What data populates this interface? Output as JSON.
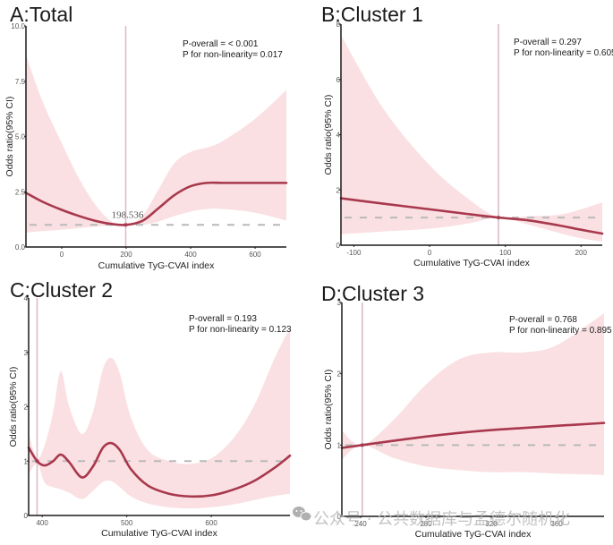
{
  "colors": {
    "curve": "#a8384d",
    "ci_band": "#f9dadd",
    "reference_line": "#b9b9b9",
    "knot_line": "#dcbcca",
    "axis": "#1a1a1a"
  },
  "watermark": {
    "icon": "wechat-icon",
    "text": "公众号 · 公共数据库与孟德尔随机化"
  },
  "chart_data": [
    {
      "id": "A",
      "type": "line",
      "title": "A:Total",
      "xlabel": "Cumulative TyG-CVAI index",
      "ylabel": "Odds ratio(95% CI)",
      "xlim": [
        -111,
        697
      ],
      "ylim": [
        0,
        10
      ],
      "xticks": [
        0,
        200,
        400,
        600
      ],
      "xtick_labels": [
        "0",
        "200",
        "400",
        "600"
      ],
      "yticks": [
        0,
        2.5,
        5,
        7.5,
        10
      ],
      "ytick_labels": [
        "0.0",
        "2.5",
        "5.0",
        "7.5",
        "10.0"
      ],
      "reference_y": 1,
      "knot_x": 198.536,
      "knot_label": "198.536",
      "stats": [
        "P-overall = < 0.001",
        "P for non-linearity= 0.017"
      ],
      "grid": false,
      "legend": "none",
      "series": [
        {
          "name": "OR",
          "x": [
            -111,
            -60,
            0,
            50,
            100,
            150,
            198.5,
            250,
            300,
            350,
            400,
            450,
            500,
            600,
            697
          ],
          "y": [
            2.45,
            2.05,
            1.68,
            1.42,
            1.2,
            1.05,
            1.0,
            1.18,
            1.75,
            2.35,
            2.75,
            2.9,
            2.9,
            2.9,
            2.9
          ]
        },
        {
          "name": "CI upper",
          "x": [
            -111,
            -60,
            0,
            50,
            100,
            150,
            198.5,
            250,
            300,
            350,
            400,
            450,
            500,
            600,
            697
          ],
          "y": [
            8.7,
            6.6,
            4.7,
            3.2,
            2.0,
            1.2,
            1.0,
            1.4,
            2.6,
            3.8,
            4.3,
            4.5,
            4.8,
            5.8,
            7.1
          ]
        },
        {
          "name": "CI lower",
          "x": [
            -111,
            -60,
            0,
            50,
            100,
            150,
            198.5,
            250,
            300,
            350,
            400,
            450,
            500,
            600,
            697
          ],
          "y": [
            0.65,
            0.72,
            0.78,
            0.85,
            0.92,
            0.97,
            1.0,
            1.0,
            1.15,
            1.4,
            1.6,
            1.72,
            1.72,
            1.55,
            1.2
          ]
        }
      ]
    },
    {
      "id": "B",
      "type": "line",
      "title": "B:Cluster 1",
      "xlabel": "Cumulative TyG-CVAI index",
      "ylabel": "Odds ratio(95% CI)",
      "xlim": [
        -117,
        228
      ],
      "ylim": [
        0,
        8
      ],
      "xticks": [
        -100,
        0,
        100,
        200
      ],
      "xtick_labels": [
        "-100",
        "0",
        "100",
        "200"
      ],
      "yticks": [
        0,
        2,
        4,
        6,
        8
      ],
      "ytick_labels": [
        "0",
        "2",
        "4",
        "6",
        "8"
      ],
      "reference_y": 1,
      "knot_x": 91,
      "stats": [
        "P-overall = 0.297",
        "P for non-linearity = 0.605"
      ],
      "grid": false,
      "legend": "none",
      "series": [
        {
          "name": "OR",
          "x": [
            -117,
            -60,
            0,
            50,
            91,
            130,
            170,
            200,
            228
          ],
          "y": [
            1.7,
            1.5,
            1.3,
            1.13,
            1.0,
            0.9,
            0.72,
            0.56,
            0.42
          ]
        },
        {
          "name": "CI upper",
          "x": [
            -117,
            -60,
            0,
            50,
            91,
            130,
            170,
            200,
            228
          ],
          "y": [
            7.6,
            4.9,
            2.9,
            1.7,
            1.0,
            1.05,
            1.1,
            1.3,
            1.55
          ]
        },
        {
          "name": "CI lower",
          "x": [
            -117,
            -60,
            0,
            50,
            91,
            130,
            170,
            200,
            228
          ],
          "y": [
            0.4,
            0.5,
            0.6,
            0.78,
            1.0,
            0.75,
            0.45,
            0.25,
            0.13
          ]
        }
      ]
    },
    {
      "id": "C",
      "type": "line",
      "title": "C:Cluster 2",
      "xlabel": "Cumulative TyG-CVAI index",
      "ylabel": "Odds ratio(95% CI)",
      "xlim": [
        384,
        693
      ],
      "ylim": [
        0,
        4
      ],
      "xticks": [
        400,
        500,
        600
      ],
      "xtick_labels": [
        "400",
        "500",
        "600"
      ],
      "yticks": [
        0,
        1,
        2,
        3,
        4
      ],
      "ytick_labels": [
        "0",
        "1",
        "2",
        "3",
        "4"
      ],
      "reference_y": 1,
      "knot_x": 394,
      "stats": [
        "P-overall = 0.193",
        "P for non-linearity = 0.123"
      ],
      "grid": false,
      "legend": "none",
      "series": [
        {
          "name": "OR",
          "x": [
            384,
            394,
            403,
            413,
            422,
            432,
            447,
            460,
            472,
            482,
            492,
            505,
            525,
            550,
            575,
            600,
            625,
            650,
            675,
            693
          ],
          "y": [
            1.25,
            1.0,
            0.92,
            1.0,
            1.12,
            0.98,
            0.7,
            0.9,
            1.25,
            1.33,
            1.2,
            0.85,
            0.55,
            0.4,
            0.35,
            0.37,
            0.47,
            0.63,
            0.88,
            1.1
          ]
        },
        {
          "name": "CI upper",
          "x": [
            384,
            394,
            403,
            413,
            422,
            432,
            447,
            460,
            472,
            482,
            492,
            505,
            525,
            550,
            575,
            600,
            625,
            650,
            675,
            693
          ],
          "y": [
            1.5,
            1.05,
            1.3,
            1.9,
            2.65,
            2.0,
            1.5,
            1.9,
            2.7,
            2.9,
            2.6,
            1.8,
            1.2,
            1.0,
            0.95,
            1.05,
            1.4,
            2.0,
            2.9,
            3.45
          ]
        },
        {
          "name": "CI lower",
          "x": [
            384,
            394,
            403,
            413,
            422,
            432,
            447,
            460,
            472,
            482,
            492,
            505,
            525,
            550,
            575,
            600,
            625,
            650,
            675,
            693
          ],
          "y": [
            0.75,
            0.95,
            0.6,
            0.52,
            0.48,
            0.42,
            0.3,
            0.45,
            0.62,
            0.63,
            0.52,
            0.35,
            0.22,
            0.15,
            0.13,
            0.15,
            0.2,
            0.28,
            0.36,
            0.4
          ]
        }
      ]
    },
    {
      "id": "D",
      "type": "line",
      "title": "D:Cluster 3",
      "xlabel": "Cumulative TyG-CVAI index",
      "ylabel": "Odds ratio(95% CI)",
      "xlim": [
        228.5,
        389
      ],
      "ylim": [
        0,
        3
      ],
      "xticks": [
        240,
        280,
        320,
        360
      ],
      "xtick_labels": [
        "240",
        "280",
        "320",
        "360"
      ],
      "yticks": [
        0,
        1,
        2,
        3
      ],
      "ytick_labels": [
        "0",
        "1",
        "2",
        "3"
      ],
      "reference_y": 1,
      "knot_x": 241,
      "stats": [
        "P-overall = 0.768",
        "P for non-linearity = 0.895"
      ],
      "grid": false,
      "legend": "none",
      "series": [
        {
          "name": "OR",
          "x": [
            228.5,
            241,
            260,
            280,
            300,
            320,
            340,
            360,
            389
          ],
          "y": [
            0.96,
            1.0,
            1.06,
            1.12,
            1.17,
            1.21,
            1.24,
            1.27,
            1.31
          ]
        },
        {
          "name": "CI upper",
          "x": [
            228.5,
            241,
            260,
            280,
            300,
            320,
            340,
            360,
            389
          ],
          "y": [
            1.2,
            1.0,
            1.35,
            1.85,
            2.2,
            2.3,
            2.3,
            2.4,
            2.85
          ]
        },
        {
          "name": "CI lower",
          "x": [
            228.5,
            241,
            260,
            280,
            300,
            320,
            340,
            360,
            389
          ],
          "y": [
            0.8,
            1.0,
            0.82,
            0.7,
            0.65,
            0.62,
            0.62,
            0.6,
            0.58
          ]
        }
      ]
    }
  ]
}
